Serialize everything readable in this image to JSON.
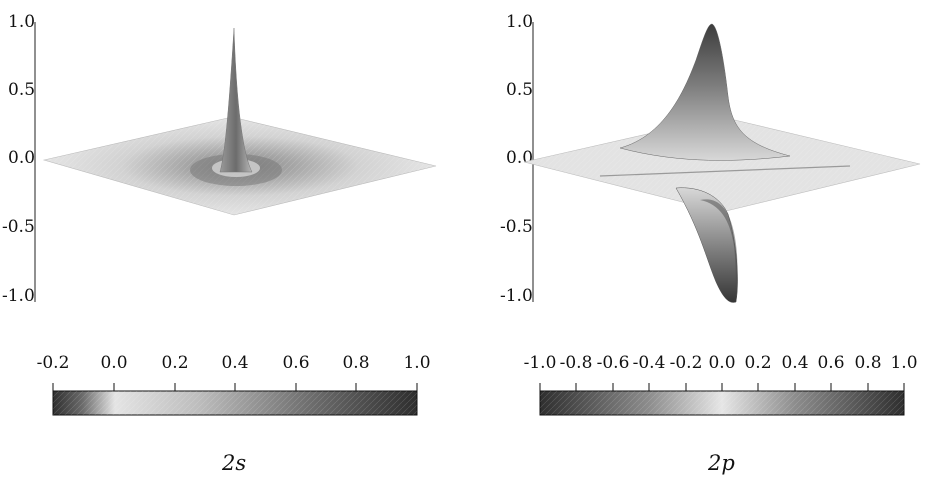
{
  "panels": [
    {
      "id": "2s",
      "caption": "2s",
      "z_ticks": [
        "1.0",
        "0.5",
        "0.0",
        "-0.5",
        "-1.0"
      ],
      "colorbar": {
        "ticks": [
          "-0.2",
          "0.0",
          "0.2",
          "0.4",
          "0.6",
          "0.8",
          "1.0"
        ],
        "range": [
          -0.2,
          1.0
        ]
      }
    },
    {
      "id": "2p",
      "caption": "2p",
      "z_ticks": [
        "1.0",
        "0.5",
        "0.0",
        "-0.5",
        "-1.0"
      ],
      "colorbar": {
        "ticks": [
          "-1.0",
          "-0.8",
          "-0.6",
          "-0.4",
          "-0.2",
          "0.0",
          "0.2",
          "0.4",
          "0.6",
          "0.8",
          "1.0"
        ],
        "range": [
          -1.0,
          1.0
        ]
      }
    }
  ],
  "colors": {
    "surface_light": "#e6e6e6",
    "surface_mid": "#9a9a9a",
    "surface_dark": "#3a3a3a",
    "axis": "#222222"
  }
}
